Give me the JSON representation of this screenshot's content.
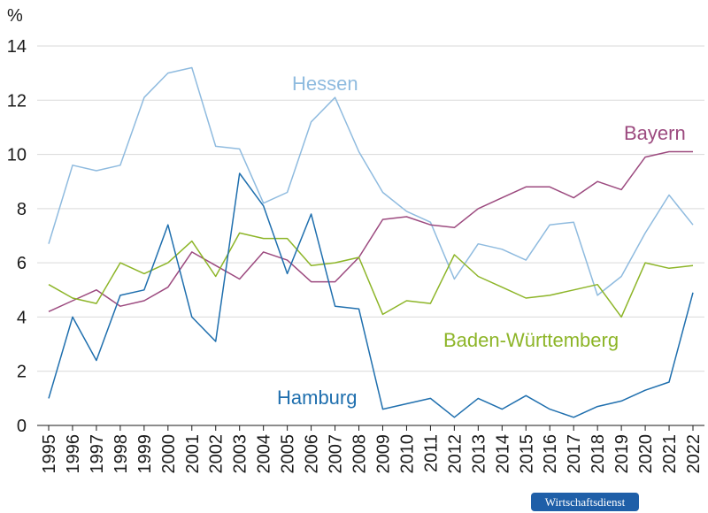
{
  "chart_data": {
    "type": "line",
    "ylabel": "%",
    "ylim": [
      0,
      14
    ],
    "yticks": [
      "0",
      "2",
      "4",
      "6",
      "8",
      "10",
      "12",
      "14"
    ],
    "categories": [
      "1995",
      "1996",
      "1997",
      "1998",
      "1999",
      "2000",
      "2001",
      "2002",
      "2003",
      "2004",
      "2005",
      "2006",
      "2007",
      "2008",
      "2009",
      "2010",
      "2011",
      "2012",
      "2013",
      "2014",
      "2015",
      "2016",
      "2017",
      "2018",
      "2019",
      "2020",
      "2021",
      "2022"
    ],
    "grid": true,
    "series": [
      {
        "name": "Hessen",
        "color": "#8fbbdf",
        "values": [
          6.7,
          9.6,
          9.4,
          9.6,
          12.1,
          13.0,
          13.2,
          10.3,
          10.2,
          8.2,
          8.6,
          11.2,
          12.1,
          10.1,
          8.6,
          7.9,
          7.5,
          5.4,
          6.7,
          6.5,
          6.1,
          7.4,
          7.5,
          4.8,
          5.5,
          7.1,
          8.5,
          7.4
        ]
      },
      {
        "name": "Bayern",
        "color": "#9c4a7f",
        "values": [
          4.2,
          4.6,
          5.0,
          4.4,
          4.6,
          5.1,
          6.4,
          5.9,
          5.4,
          6.4,
          6.1,
          5.3,
          5.3,
          6.2,
          7.6,
          7.7,
          7.4,
          7.3,
          8.0,
          8.4,
          8.8,
          8.8,
          8.4,
          9.0,
          8.7,
          9.9,
          10.1,
          10.1
        ]
      },
      {
        "name": "Baden-Württemberg",
        "color": "#8db528",
        "values": [
          5.2,
          4.7,
          4.5,
          6.0,
          5.6,
          6.0,
          6.8,
          5.5,
          7.1,
          6.9,
          6.9,
          5.9,
          6.0,
          6.2,
          4.1,
          4.6,
          4.5,
          6.3,
          5.5,
          5.1,
          4.7,
          4.8,
          5.0,
          5.2,
          4.0,
          6.0,
          5.8,
          5.9
        ]
      },
      {
        "name": "Hamburg",
        "color": "#1f6fae",
        "values": [
          1.0,
          4.0,
          2.4,
          4.8,
          5.0,
          7.4,
          4.0,
          3.1,
          9.3,
          8.1,
          5.6,
          7.8,
          4.4,
          4.3,
          0.6,
          0.8,
          1.0,
          0.3,
          1.0,
          0.6,
          1.1,
          0.6,
          0.3,
          0.7,
          0.9,
          1.3,
          1.6,
          4.9
        ]
      }
    ]
  },
  "source_badge": "Wirtschaftsdienst"
}
